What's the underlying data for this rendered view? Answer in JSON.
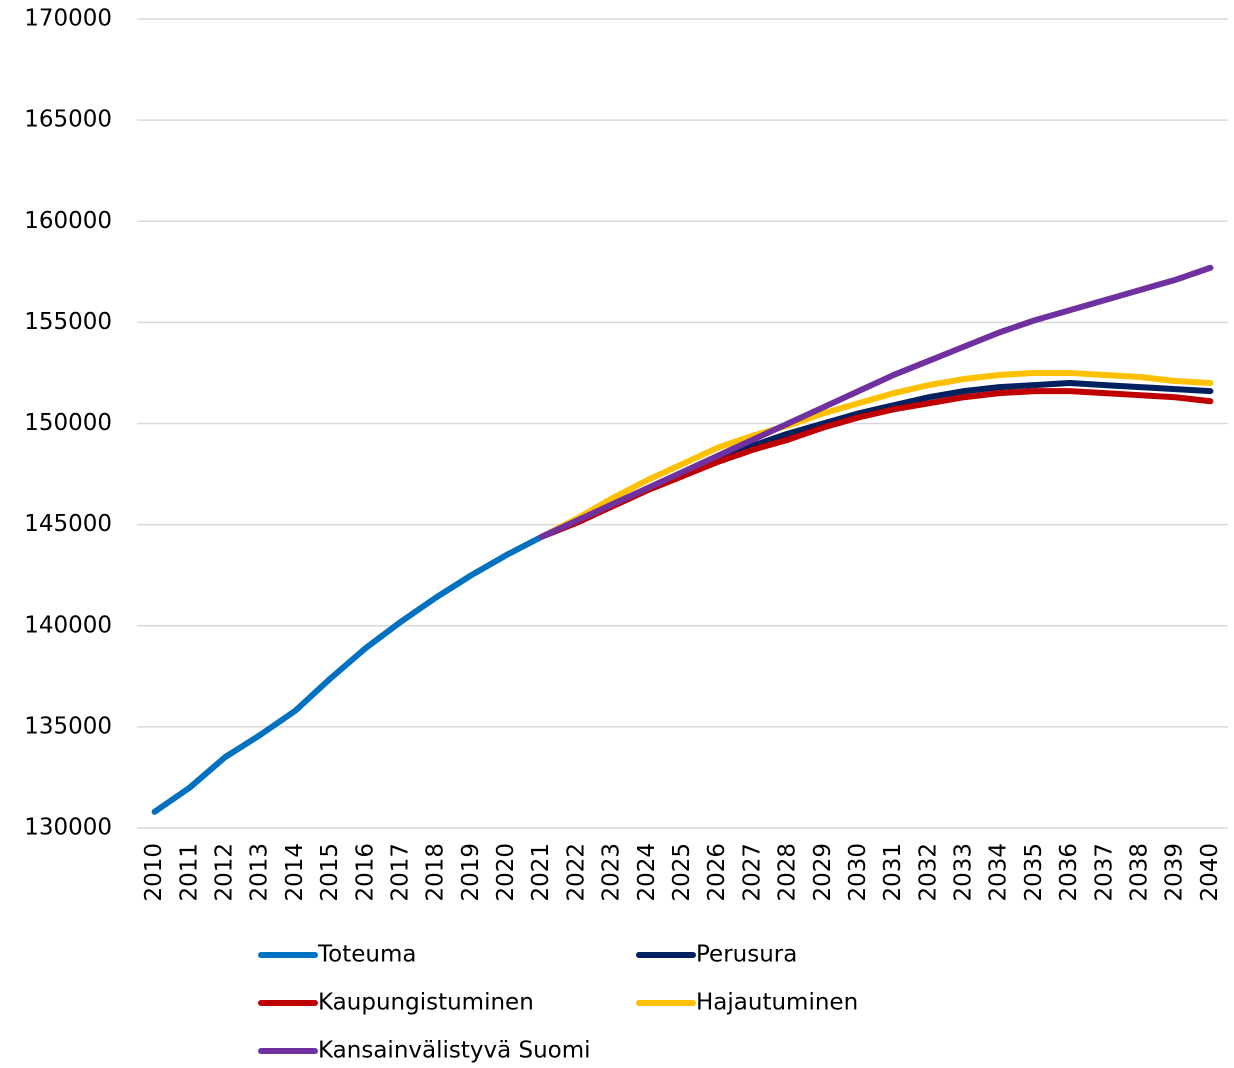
{
  "chart_data": {
    "type": "line",
    "categories": [
      "2010",
      "2011",
      "2012",
      "2013",
      "2014",
      "2015",
      "2016",
      "2017",
      "2018",
      "2019",
      "2020",
      "2021",
      "2022",
      "2023",
      "2024",
      "2025",
      "2026",
      "2027",
      "2028",
      "2029",
      "2030",
      "2031",
      "2032",
      "2033",
      "2034",
      "2035",
      "2036",
      "2037",
      "2038",
      "2039",
      "2040"
    ],
    "series": [
      {
        "name": "Toteuma",
        "color": "#0070c0",
        "values": [
          130800,
          132000,
          133500,
          134600,
          135800,
          137400,
          138900,
          140200,
          141400,
          142500,
          143500,
          144400,
          null,
          null,
          null,
          null,
          null,
          null,
          null,
          null,
          null,
          null,
          null,
          null,
          null,
          null,
          null,
          null,
          null,
          null,
          null
        ]
      },
      {
        "name": "Perusura",
        "color": "#002060",
        "values": [
          null,
          null,
          null,
          null,
          null,
          null,
          null,
          null,
          null,
          null,
          null,
          144400,
          145100,
          145900,
          146700,
          147400,
          148200,
          148900,
          149500,
          150000,
          150500,
          150900,
          151300,
          151600,
          151800,
          151900,
          152000,
          151900,
          151800,
          151700,
          151600
        ]
      },
      {
        "name": "Kaupungistuminen",
        "color": "#c00000",
        "values": [
          null,
          null,
          null,
          null,
          null,
          null,
          null,
          null,
          null,
          null,
          null,
          144400,
          145100,
          145900,
          146700,
          147400,
          148100,
          148700,
          149200,
          149800,
          150300,
          150700,
          151000,
          151300,
          151500,
          151600,
          151600,
          151500,
          151400,
          151300,
          151100
        ]
      },
      {
        "name": "Hajautuminen",
        "color": "#ffc000",
        "values": [
          null,
          null,
          null,
          null,
          null,
          null,
          null,
          null,
          null,
          null,
          null,
          144400,
          145300,
          146300,
          147200,
          148000,
          148800,
          149400,
          149900,
          150500,
          151000,
          151500,
          151900,
          152200,
          152400,
          152500,
          152500,
          152400,
          152300,
          152100,
          152000
        ]
      },
      {
        "name": "Kansainvälistyvä Suomi",
        "color": "#7030a0",
        "values": [
          null,
          null,
          null,
          null,
          null,
          null,
          null,
          null,
          null,
          null,
          null,
          144400,
          145200,
          146000,
          146800,
          147600,
          148400,
          149200,
          150000,
          150800,
          151600,
          152400,
          153100,
          153800,
          154500,
          155100,
          155600,
          156100,
          156600,
          157100,
          157700
        ]
      }
    ],
    "ylim": [
      130000,
      170000
    ],
    "yticks": [
      130000,
      135000,
      140000,
      145000,
      150000,
      155000,
      160000,
      165000,
      170000
    ],
    "grid": true
  }
}
